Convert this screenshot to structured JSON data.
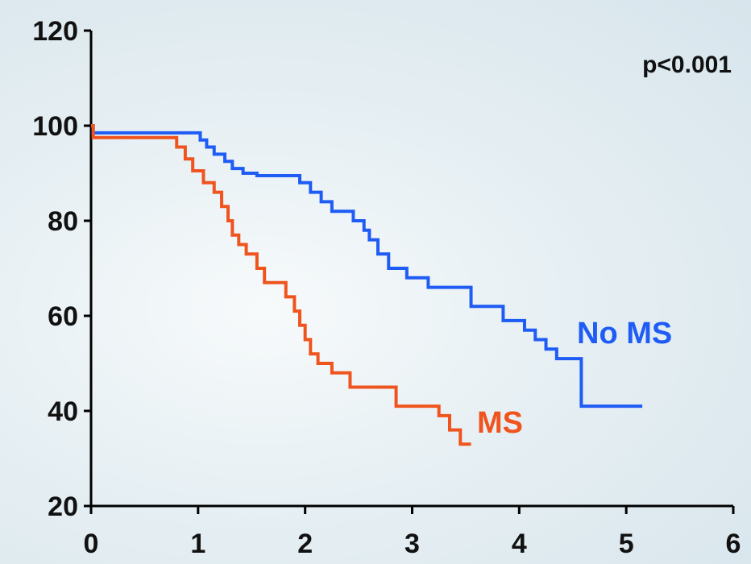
{
  "chart_data": {
    "type": "line",
    "title": "",
    "xlabel": "",
    "ylabel": "",
    "xlim": [
      0,
      6
    ],
    "ylim": [
      20,
      120
    ],
    "xticks": [
      0,
      1,
      2,
      3,
      4,
      5,
      6
    ],
    "yticks": [
      20,
      40,
      60,
      80,
      100,
      120
    ],
    "grid": false,
    "annotation": "p<0.001",
    "series": [
      {
        "name": "No MS",
        "color": "#1f5cf5",
        "step": true,
        "x": [
          0,
          0.02,
          0.98,
          1.02,
          1.08,
          1.15,
          1.25,
          1.32,
          1.42,
          1.55,
          1.95,
          2.05,
          2.15,
          2.25,
          2.45,
          2.55,
          2.6,
          2.68,
          2.78,
          2.95,
          3.15,
          3.55,
          3.85,
          4.05,
          4.15,
          4.25,
          4.35,
          4.55,
          4.58,
          4.68,
          4.85,
          5.15
        ],
        "y": [
          100,
          98.5,
          98.5,
          97,
          95.5,
          94,
          92.5,
          91,
          90,
          89.5,
          88,
          86,
          84,
          82,
          80,
          78,
          76,
          73,
          70,
          68,
          66,
          62,
          59,
          57,
          55,
          53,
          51,
          51,
          41,
          41,
          41,
          41
        ]
      },
      {
        "name": "MS",
        "color": "#f0541e",
        "step": true,
        "x": [
          0,
          0.02,
          0.72,
          0.8,
          0.88,
          0.95,
          1.05,
          1.15,
          1.22,
          1.28,
          1.32,
          1.38,
          1.45,
          1.55,
          1.62,
          1.68,
          1.82,
          1.9,
          1.95,
          2.0,
          2.05,
          2.12,
          2.25,
          2.42,
          2.85,
          3.25,
          3.35,
          3.45,
          3.55
        ],
        "y": [
          100,
          97.5,
          97.5,
          95.5,
          93,
          90.5,
          88,
          86,
          83,
          80,
          77,
          75,
          73,
          70,
          67,
          67,
          64,
          61,
          58,
          55,
          52,
          50,
          48,
          45,
          41,
          39,
          36,
          33,
          33
        ]
      }
    ]
  }
}
